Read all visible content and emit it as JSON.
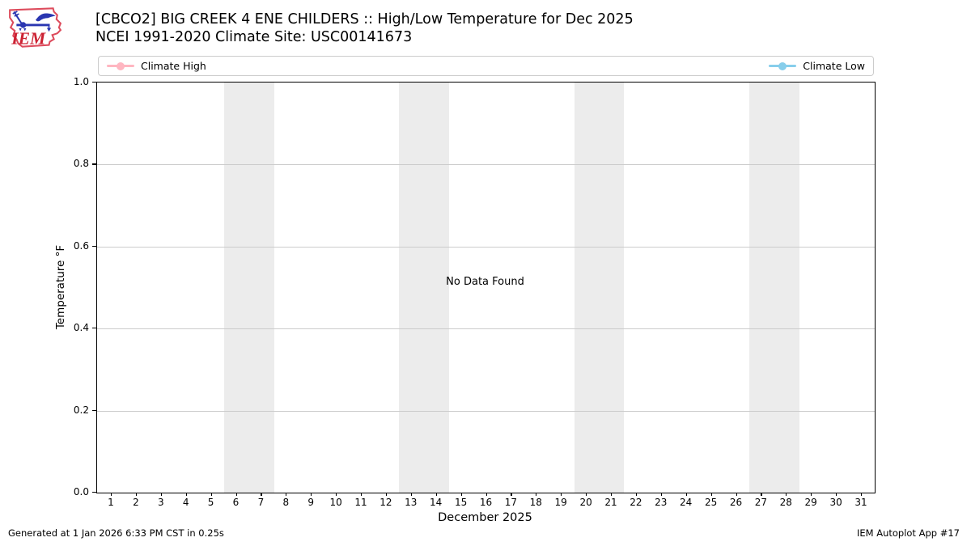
{
  "logo": {
    "text": "IEM"
  },
  "legend": {
    "entries": [
      {
        "label": "Climate High",
        "color": "#ffb6c1"
      },
      {
        "label": "Climate Low",
        "color": "#87ceeb"
      }
    ]
  },
  "chart_data": {
    "type": "line",
    "title": "[CBCO2] BIG CREEK 4 ENE CHILDERS :: High/Low Temperature for Dec 2025",
    "subtitle": "NCEI 1991-2020 Climate Site: USC00141673",
    "xlabel": "December 2025",
    "ylabel": "Temperature °F",
    "ylim": [
      0.0,
      1.0
    ],
    "yticks": [
      0.0,
      0.2,
      0.4,
      0.6,
      0.8,
      1.0
    ],
    "ytick_labels": [
      "0.0",
      "0.2",
      "0.4",
      "0.6",
      "0.8",
      "1.0"
    ],
    "xticks": [
      1,
      2,
      3,
      4,
      5,
      6,
      7,
      8,
      9,
      10,
      11,
      12,
      13,
      14,
      15,
      16,
      17,
      18,
      19,
      20,
      21,
      22,
      23,
      24,
      25,
      26,
      27,
      28,
      29,
      30,
      31
    ],
    "xlim": [
      0.42,
      31.58
    ],
    "grid": "horizontal gridlines only",
    "legend_position": "top strip spanning plot width, entries at left and right ends",
    "series": [
      {
        "name": "Climate High",
        "color": "#ffb6c1",
        "values": []
      },
      {
        "name": "Climate Low",
        "color": "#87ceeb",
        "values": []
      }
    ],
    "annotation": {
      "text": "No Data Found"
    },
    "weekend_bands_x": [
      [
        5.5,
        7.5
      ],
      [
        12.5,
        14.5
      ],
      [
        19.5,
        21.5
      ],
      [
        26.5,
        28.5
      ]
    ],
    "band_color": "#ececec",
    "gridline_color": "#cccccc"
  },
  "footer": {
    "left": "Generated at 1 Jan 2026 6:33 PM CST in 0.25s",
    "right": "IEM Autoplot App #17"
  }
}
